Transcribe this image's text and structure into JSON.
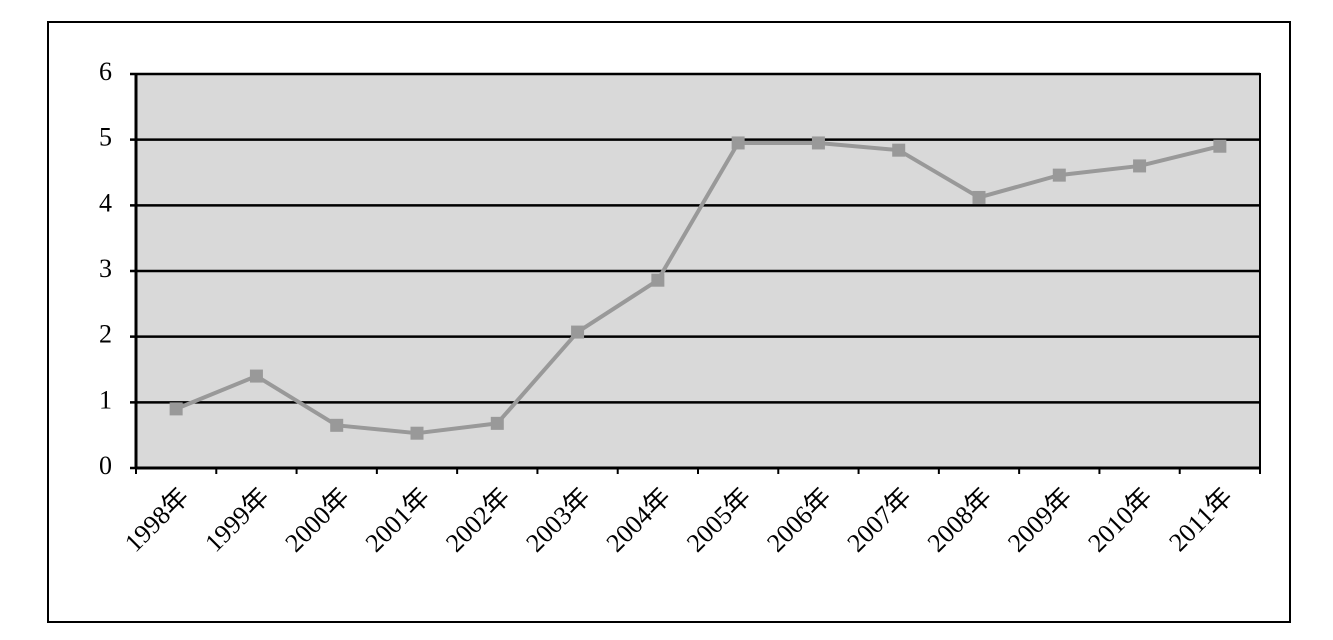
{
  "chart_data": {
    "type": "line",
    "categories": [
      "1998年",
      "1999年",
      "2000年",
      "2001年",
      "2002年",
      "2003年",
      "2004年",
      "2005年",
      "2006年",
      "2007年",
      "2008年",
      "2009年",
      "2010年",
      "2011年"
    ],
    "values": [
      0.9,
      1.4,
      0.65,
      0.53,
      0.68,
      2.07,
      2.86,
      4.95,
      4.95,
      4.84,
      4.12,
      4.46,
      4.6,
      4.9
    ],
    "color": "#999999",
    "ylim": [
      0,
      6
    ],
    "yticks": [
      0,
      1,
      2,
      3,
      4,
      5,
      6
    ],
    "grid": true
  }
}
